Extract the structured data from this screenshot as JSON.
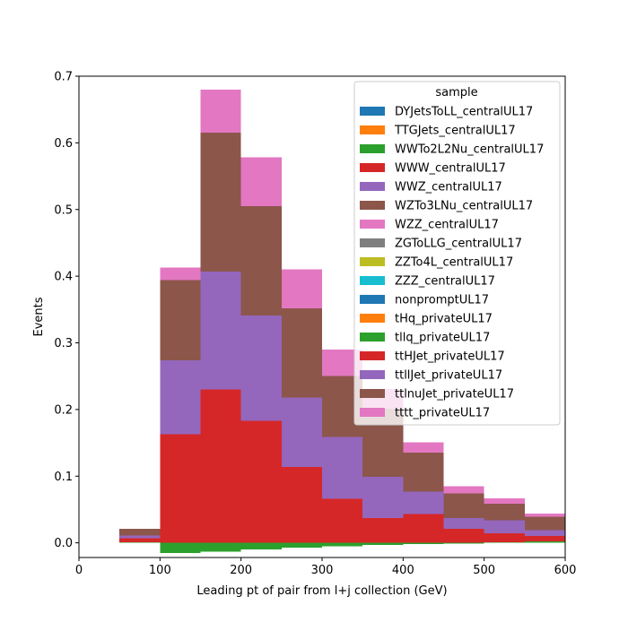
{
  "chart_data": {
    "type": "bar",
    "subtype": "stacked-histogram",
    "xlabel": "Leading pt of pair from l+j collection (GeV)",
    "ylabel": "Events",
    "xlim": [
      0,
      600
    ],
    "ylim": [
      -0.022,
      0.7
    ],
    "x_ticks": [
      0,
      100,
      200,
      300,
      400,
      500,
      600
    ],
    "y_ticks": [
      0.0,
      0.1,
      0.2,
      0.3,
      0.4,
      0.5,
      0.6,
      0.7
    ],
    "x_tick_labels": [
      "0",
      "100",
      "200",
      "300",
      "400",
      "500",
      "600"
    ],
    "y_tick_labels": [
      "0.0",
      "0.1",
      "0.2",
      "0.3",
      "0.4",
      "0.5",
      "0.6",
      "0.7"
    ],
    "grid": false,
    "legend": {
      "title": "sample",
      "placement": "top-right"
    },
    "bin_edges": [
      50,
      100,
      150,
      200,
      250,
      300,
      350,
      400,
      450,
      500,
      550,
      600
    ],
    "series": [
      {
        "name": "DYJetsToLL_centralUL17",
        "color": "#1f77b4",
        "values": [
          0,
          0,
          0,
          0,
          0,
          0,
          0,
          0,
          0,
          0,
          0
        ]
      },
      {
        "name": "TTGJets_centralUL17",
        "color": "#ff7f0e",
        "values": [
          0,
          0,
          0,
          0,
          0,
          0,
          0,
          0,
          0,
          0,
          0
        ]
      },
      {
        "name": "WWTo2L2Nu_centralUL17",
        "color": "#2ca02c",
        "values": [
          0.001,
          -0.015,
          -0.013,
          -0.01,
          -0.007,
          -0.005,
          -0.003,
          -0.002,
          -0.001,
          0.001,
          0.002
        ]
      },
      {
        "name": "WWW_centralUL17",
        "color": "#d62728",
        "values": [
          0.006,
          0.163,
          0.23,
          0.183,
          0.114,
          0.066,
          0.037,
          0.043,
          0.021,
          0.013,
          0.008
        ]
      },
      {
        "name": "WWZ_centralUL17",
        "color": "#9467bd",
        "values": [
          0.004,
          0.111,
          0.177,
          0.158,
          0.104,
          0.093,
          0.062,
          0.034,
          0.016,
          0.02,
          0.009
        ]
      },
      {
        "name": "WZTo3LNu_centralUL17",
        "color": "#8c564b",
        "values": [
          0.01,
          0.12,
          0.208,
          0.164,
          0.134,
          0.091,
          0.102,
          0.058,
          0.037,
          0.025,
          0.02
        ]
      },
      {
        "name": "WZZ_centralUL17",
        "color": "#e377c2",
        "values": [
          0,
          0.019,
          0.065,
          0.073,
          0.058,
          0.04,
          0.03,
          0.016,
          0.011,
          0.008,
          0.005
        ]
      },
      {
        "name": "ZGToLLG_centralUL17",
        "color": "#7f7f7f",
        "values": [
          0,
          0,
          0,
          0,
          0,
          0,
          0,
          0,
          0,
          0,
          0
        ]
      },
      {
        "name": "ZZTo4L_centralUL17",
        "color": "#bcbd22",
        "values": [
          0,
          0,
          0,
          0,
          0,
          0,
          0,
          0,
          0,
          0,
          0
        ]
      },
      {
        "name": "ZZZ_centralUL17",
        "color": "#17becf",
        "values": [
          0,
          0,
          0,
          0,
          0,
          0,
          0,
          0,
          0,
          0,
          0
        ]
      },
      {
        "name": "nonpromptUL17",
        "color": "#1f77b4",
        "values": [
          0,
          0,
          0,
          0,
          0,
          0,
          0,
          0,
          0,
          0,
          0
        ]
      },
      {
        "name": "tHq_privateUL17",
        "color": "#ff7f0e",
        "values": [
          0,
          0,
          0,
          0,
          0,
          0,
          0,
          0,
          0,
          0,
          0
        ]
      },
      {
        "name": "tllq_privateUL17",
        "color": "#2ca02c",
        "values": [
          0,
          0,
          0,
          0,
          0,
          0,
          0,
          0,
          0,
          0,
          0
        ]
      },
      {
        "name": "ttHJet_privateUL17",
        "color": "#d62728",
        "values": [
          0,
          0,
          0,
          0,
          0,
          0,
          0,
          0,
          0,
          0,
          0
        ]
      },
      {
        "name": "ttllJet_privateUL17",
        "color": "#9467bd",
        "values": [
          0,
          0,
          0,
          0,
          0,
          0,
          0,
          0,
          0,
          0,
          0
        ]
      },
      {
        "name": "ttlnuJet_privateUL17",
        "color": "#8c564b",
        "values": [
          0,
          0,
          0,
          0,
          0,
          0,
          0,
          0,
          0,
          0,
          0
        ]
      },
      {
        "name": "tttt_privateUL17",
        "color": "#e377c2",
        "values": [
          0,
          0,
          0,
          0,
          0,
          0,
          0,
          0,
          0,
          0,
          0
        ]
      }
    ]
  }
}
